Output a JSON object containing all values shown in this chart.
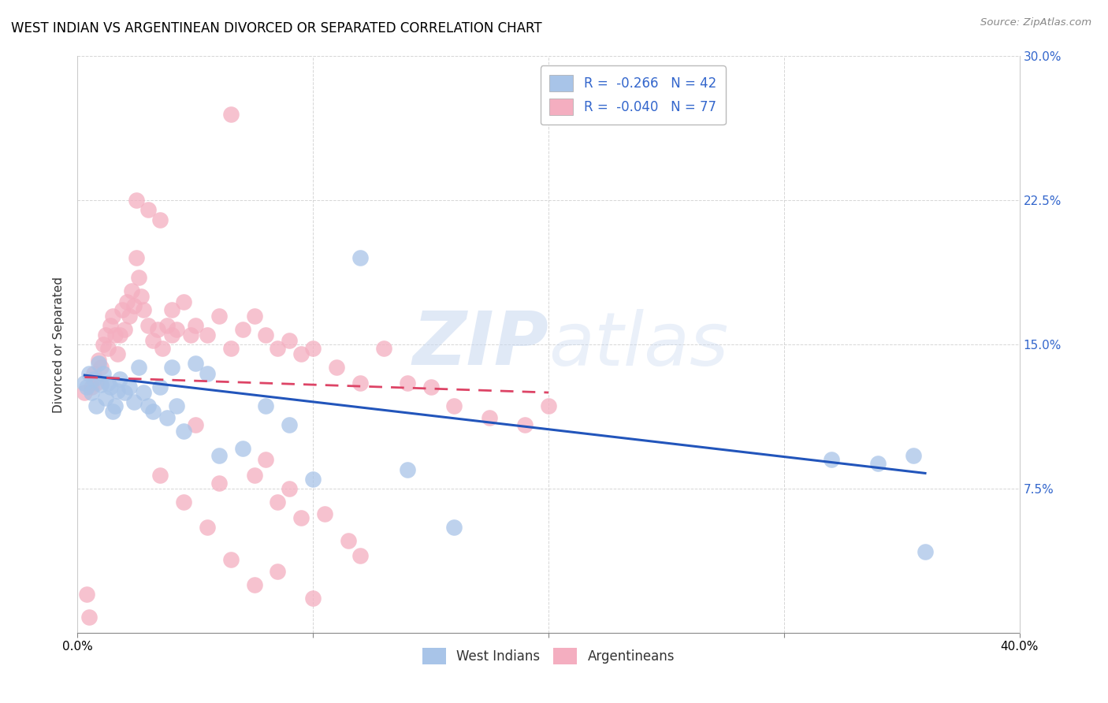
{
  "title": "WEST INDIAN VS ARGENTINEAN DIVORCED OR SEPARATED CORRELATION CHART",
  "source": "Source: ZipAtlas.com",
  "ylabel_label": "Divorced or Separated",
  "xlim": [
    0.0,
    0.4
  ],
  "ylim": [
    0.0,
    0.3
  ],
  "xticks": [
    0.0,
    0.1,
    0.2,
    0.3,
    0.4
  ],
  "yticks": [
    0.0,
    0.075,
    0.15,
    0.225,
    0.3
  ],
  "legend_label1": "West Indians",
  "legend_label2": "Argentineans",
  "blue_color": "#a8c4e8",
  "pink_color": "#f4aec0",
  "blue_line_color": "#2255bb",
  "pink_line_color": "#dd4466",
  "watermark_zip": "ZIP",
  "watermark_atlas": "atlas",
  "blue_scatter_x": [
    0.003,
    0.004,
    0.005,
    0.006,
    0.007,
    0.008,
    0.009,
    0.01,
    0.011,
    0.012,
    0.013,
    0.014,
    0.015,
    0.016,
    0.017,
    0.018,
    0.02,
    0.022,
    0.024,
    0.026,
    0.028,
    0.03,
    0.032,
    0.035,
    0.038,
    0.04,
    0.042,
    0.045,
    0.05,
    0.055,
    0.06,
    0.07,
    0.08,
    0.09,
    0.1,
    0.12,
    0.14,
    0.16,
    0.32,
    0.34,
    0.355,
    0.36
  ],
  "blue_scatter_y": [
    0.13,
    0.128,
    0.135,
    0.125,
    0.132,
    0.118,
    0.14,
    0.129,
    0.135,
    0.122,
    0.13,
    0.128,
    0.115,
    0.118,
    0.126,
    0.132,
    0.125,
    0.128,
    0.12,
    0.138,
    0.125,
    0.118,
    0.115,
    0.128,
    0.112,
    0.138,
    0.118,
    0.105,
    0.14,
    0.135,
    0.092,
    0.096,
    0.118,
    0.108,
    0.08,
    0.195,
    0.085,
    0.055,
    0.09,
    0.088,
    0.092,
    0.042
  ],
  "pink_scatter_x": [
    0.003,
    0.004,
    0.005,
    0.006,
    0.007,
    0.008,
    0.009,
    0.01,
    0.011,
    0.012,
    0.013,
    0.014,
    0.015,
    0.016,
    0.017,
    0.018,
    0.019,
    0.02,
    0.021,
    0.022,
    0.023,
    0.024,
    0.025,
    0.026,
    0.027,
    0.028,
    0.03,
    0.032,
    0.034,
    0.036,
    0.038,
    0.04,
    0.042,
    0.045,
    0.048,
    0.05,
    0.055,
    0.06,
    0.065,
    0.07,
    0.075,
    0.08,
    0.085,
    0.09,
    0.095,
    0.1,
    0.11,
    0.12,
    0.13,
    0.14,
    0.15,
    0.16,
    0.175,
    0.19,
    0.2,
    0.025,
    0.03,
    0.035,
    0.04,
    0.05,
    0.06,
    0.065,
    0.075,
    0.08,
    0.085,
    0.09,
    0.095,
    0.105,
    0.115,
    0.12,
    0.035,
    0.045,
    0.055,
    0.065,
    0.075,
    0.085,
    0.1
  ],
  "pink_scatter_y": [
    0.125,
    0.02,
    0.008,
    0.128,
    0.135,
    0.13,
    0.142,
    0.138,
    0.15,
    0.155,
    0.148,
    0.16,
    0.165,
    0.155,
    0.145,
    0.155,
    0.168,
    0.158,
    0.172,
    0.165,
    0.178,
    0.17,
    0.195,
    0.185,
    0.175,
    0.168,
    0.16,
    0.152,
    0.158,
    0.148,
    0.16,
    0.168,
    0.158,
    0.172,
    0.155,
    0.16,
    0.155,
    0.165,
    0.148,
    0.158,
    0.165,
    0.155,
    0.148,
    0.152,
    0.145,
    0.148,
    0.138,
    0.13,
    0.148,
    0.13,
    0.128,
    0.118,
    0.112,
    0.108,
    0.118,
    0.225,
    0.22,
    0.215,
    0.155,
    0.108,
    0.078,
    0.27,
    0.082,
    0.09,
    0.068,
    0.075,
    0.06,
    0.062,
    0.048,
    0.04,
    0.082,
    0.068,
    0.055,
    0.038,
    0.025,
    0.032,
    0.018
  ],
  "blue_line_x": [
    0.003,
    0.36
  ],
  "blue_line_y": [
    0.134,
    0.083
  ],
  "pink_line_x": [
    0.003,
    0.2
  ],
  "pink_line_y": [
    0.133,
    0.125
  ]
}
